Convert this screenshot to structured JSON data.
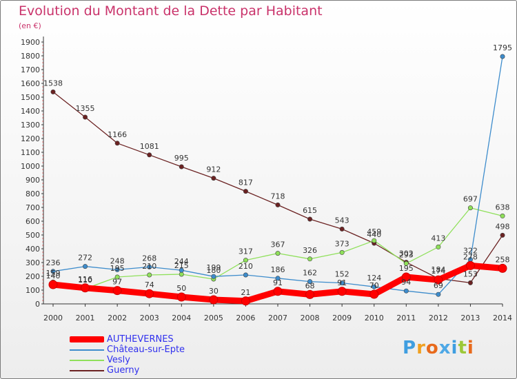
{
  "chart_data": {
    "type": "line",
    "title": "Evolution du Montant de la Dette par Habitant",
    "subtitle": "(en €)",
    "categories": [
      "2000",
      "2001",
      "2002",
      "2003",
      "2004",
      "2005",
      "2006",
      "2007",
      "2008",
      "2009",
      "2010",
      "2011",
      "2012",
      "2013",
      "2014"
    ],
    "ylim": [
      0,
      1900
    ],
    "yticks": [
      0,
      100,
      200,
      300,
      400,
      500,
      600,
      700,
      800,
      900,
      1000,
      1100,
      1200,
      1300,
      1400,
      1500,
      1600,
      1700,
      1800,
      1900
    ],
    "grid": false,
    "legend_position": "bottom-left",
    "series": [
      {
        "name": "AUTHEVERNES",
        "color": "#ff0000",
        "values": [
          140,
          116,
          97,
          74,
          50,
          30,
          21,
          91,
          68,
          91,
          70,
          195,
          174,
          278,
          258
        ]
      },
      {
        "name": "Château-sur-Epte",
        "color": "#3d8ccc",
        "values": [
          236,
          272,
          248,
          268,
          244,
          199,
          210,
          186,
          162,
          152,
          124,
          94,
          69,
          322,
          1795
        ]
      },
      {
        "name": "Vesly",
        "color": "#8fe05a",
        "values": [
          159,
          110,
          195,
          210,
          215,
          180,
          317,
          367,
          326,
          373,
          459,
          293,
          413,
          697,
          638
        ]
      },
      {
        "name": "Guerny",
        "color": "#6b2222",
        "values": [
          1538,
          1355,
          1166,
          1081,
          995,
          912,
          817,
          718,
          615,
          543,
          440,
          302,
          184,
          153,
          498
        ]
      }
    ]
  },
  "brand": {
    "name": "Proxiti",
    "letters": [
      {
        "ch": "P",
        "color": "#3f9ee0"
      },
      {
        "ch": "r",
        "color": "#f0a020"
      },
      {
        "ch": "o",
        "color": "#e86a1c"
      },
      {
        "ch": "x",
        "color": "#4ea8e6"
      },
      {
        "ch": "i",
        "color": "#3f9ee0"
      },
      {
        "ch": "t",
        "color": "#9cc838"
      },
      {
        "ch": "i",
        "color": "#e86a1c"
      }
    ]
  }
}
